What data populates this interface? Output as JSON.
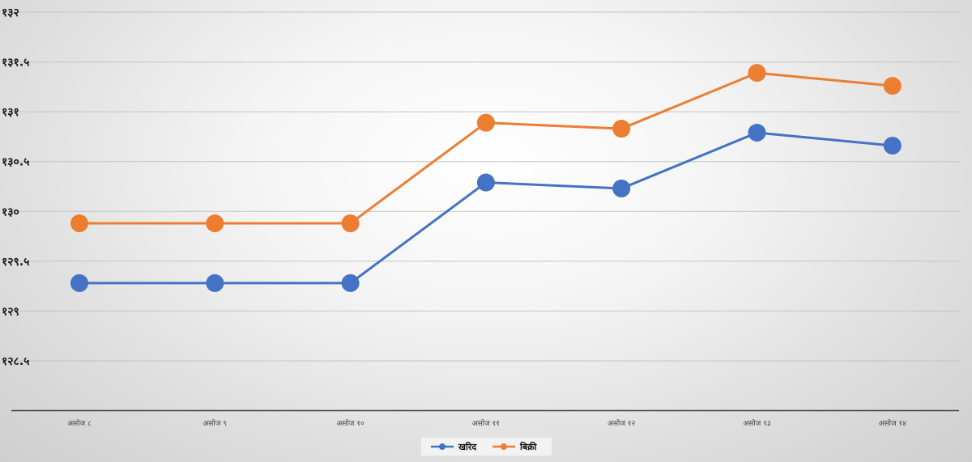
{
  "chart_data": {
    "type": "line",
    "categories": [
      "असोज ८",
      "असोज ९",
      "असोज १०",
      "असोज ११",
      "असोज १२",
      "असोज १३",
      "असोज १४"
    ],
    "series": [
      {
        "name": "खरिद",
        "color": "#4472C4",
        "values": [
          129.28,
          129.28,
          129.28,
          130.29,
          130.23,
          130.79,
          130.66
        ]
      },
      {
        "name": "बिक्री",
        "color": "#ED7D31",
        "values": [
          129.88,
          129.88,
          129.88,
          130.89,
          130.83,
          131.39,
          131.26
        ]
      }
    ],
    "ylim": [
      128,
      132
    ],
    "yticks": [
      "१३२",
      "१३१.५",
      "१३१",
      "१३०.५",
      "१३०",
      "१२९.५",
      "१२९",
      "१२८.५"
    ],
    "grid": true,
    "legend_position": "bottom"
  }
}
